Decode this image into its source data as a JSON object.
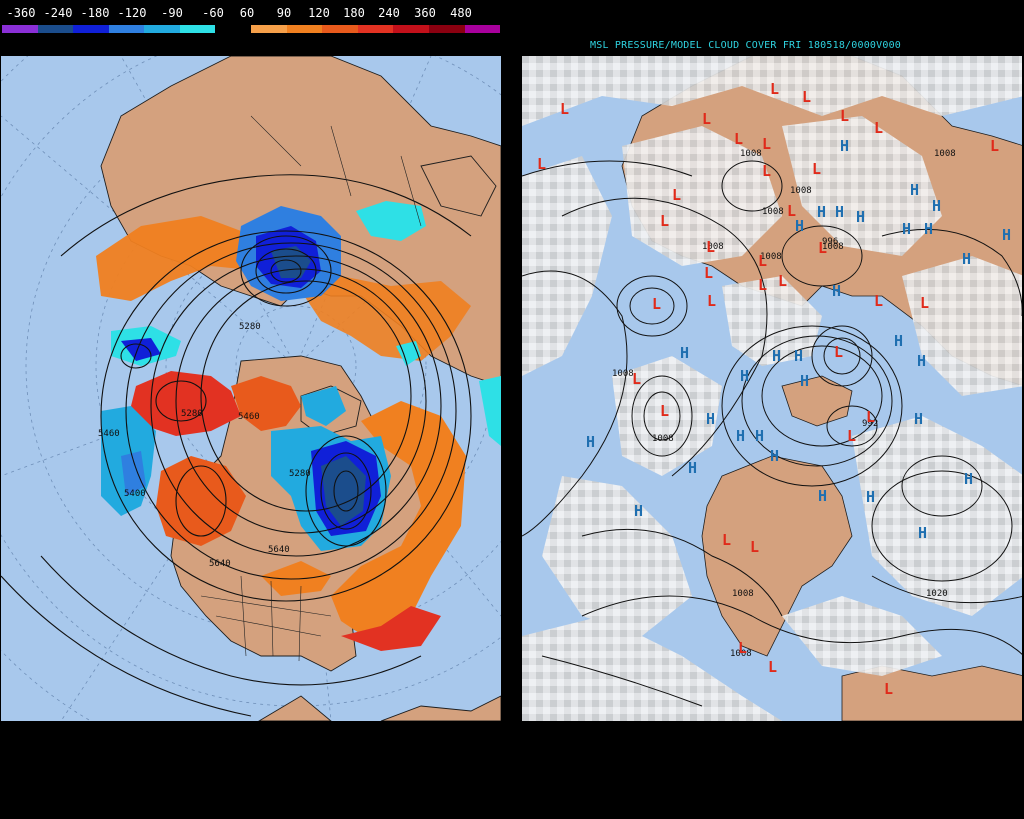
{
  "legend": {
    "labels": [
      "-360",
      "-240",
      "-180",
      "-120",
      "-90",
      "-60",
      "60",
      "90",
      "120",
      "180",
      "240",
      "360",
      "480"
    ],
    "colors": [
      "#8a2fd6",
      "#1b4d8c",
      "#1020d8",
      "#2f7fe0",
      "#22aadf",
      "#2ee0e6",
      "#000000",
      "#f6a04a",
      "#f08020",
      "#e85a1c",
      "#e23222",
      "#c2101a",
      "#8a0010",
      "#a8009c"
    ]
  },
  "left_map": {
    "contour_labels": [
      "5280",
      "5460",
      "5460",
      "5640",
      "5280",
      "5400",
      "5280",
      "5640"
    ],
    "colors": {
      "ocean": "#a8c8ec",
      "land": "#d4a17e",
      "border": "#1e1e1e"
    }
  },
  "right_map": {
    "title": "MSL PRESSURE/MODEL CLOUD COVER FRI 180518/0000V000",
    "low_symbol": "L",
    "high_symbol": "H",
    "isobar_labels": [
      "1008",
      "1008",
      "1008",
      "1008",
      "1008",
      "1008",
      "1008",
      "1008",
      "1008",
      "1020",
      "992",
      "996",
      "1008",
      "1008"
    ],
    "colors": {
      "low": "#e02a1a",
      "high": "#1f6fb0",
      "ocean": "#a8c8ec",
      "land": "#d4a17e"
    }
  }
}
